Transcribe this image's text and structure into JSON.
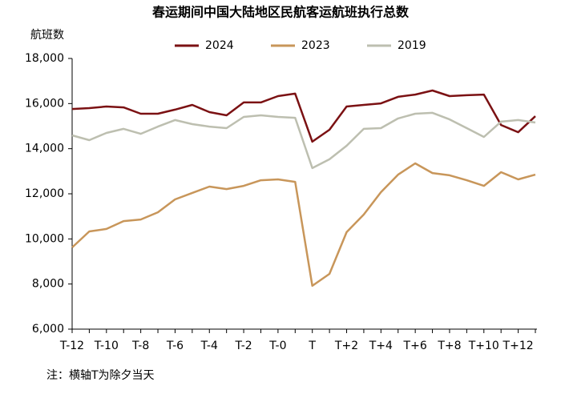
{
  "chart_data": {
    "type": "line",
    "title": "春运期间中国大陆地区民航客运航班执行总数",
    "y_label": "航班数",
    "note": "注：横轴T为除夕当天",
    "categories": [
      "T-12",
      null,
      "T-10",
      null,
      "T-8",
      null,
      "T-6",
      null,
      "T-4",
      null,
      "T-2",
      null,
      "T-0",
      null,
      "T",
      null,
      "T+2",
      null,
      "T+4",
      null,
      "T+6",
      null,
      "T+8",
      null,
      "T+10",
      null,
      "T+12",
      null
    ],
    "series": [
      {
        "name": "2024",
        "color": "#7b1113",
        "values": [
          15760,
          15800,
          15870,
          15830,
          15550,
          15550,
          15730,
          15940,
          15620,
          15480,
          16050,
          16050,
          16330,
          16440,
          14310,
          14840,
          15870,
          15940,
          16010,
          16300,
          16400,
          16580,
          16330,
          16370,
          16400,
          15050,
          14730,
          15440
        ]
      },
      {
        "name": "2023",
        "color": "#c8965a",
        "values": [
          9620,
          10330,
          10440,
          10790,
          10860,
          11180,
          11750,
          12040,
          12320,
          12210,
          12350,
          12600,
          12640,
          12530,
          7920,
          8450,
          10300,
          11080,
          12070,
          12850,
          13350,
          12920,
          12820,
          12600,
          12350,
          12960,
          12640,
          12850
        ]
      },
      {
        "name": "2019",
        "color": "#bdbfb0",
        "values": [
          14590,
          14380,
          14700,
          14880,
          14660,
          14980,
          15270,
          15090,
          14980,
          14910,
          15410,
          15480,
          15410,
          15370,
          13140,
          13530,
          14130,
          14880,
          14910,
          15340,
          15550,
          15590,
          15300,
          14910,
          14520,
          15200,
          15270,
          15160
        ]
      }
    ],
    "ylim": [
      6000,
      18000
    ],
    "yticks": [
      {
        "value": 6000,
        "label": "6,000"
      },
      {
        "value": 8000,
        "label": "8,000"
      },
      {
        "value": 10000,
        "label": "10,000"
      },
      {
        "value": 12000,
        "label": "12,000"
      },
      {
        "value": 14000,
        "label": "14,000"
      },
      {
        "value": 16000,
        "label": "16,000"
      },
      {
        "value": 18000,
        "label": "18,000"
      }
    ],
    "grid": false,
    "legend": "top"
  }
}
